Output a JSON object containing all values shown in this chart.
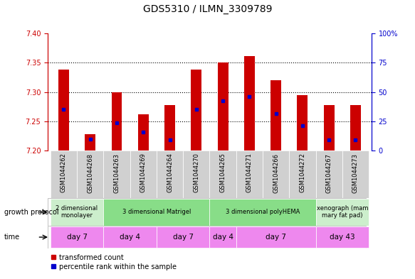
{
  "title": "GDS5310 / ILMN_3309789",
  "samples": [
    "GSM1044262",
    "GSM1044268",
    "GSM1044263",
    "GSM1044269",
    "GSM1044264",
    "GSM1044270",
    "GSM1044265",
    "GSM1044271",
    "GSM1044266",
    "GSM1044272",
    "GSM1044267",
    "GSM1044273"
  ],
  "bar_bottom": 7.2,
  "bar_tops": [
    7.338,
    7.228,
    7.3,
    7.262,
    7.278,
    7.338,
    7.35,
    7.362,
    7.32,
    7.295,
    7.278,
    7.278
  ],
  "blue_dot_y": [
    7.27,
    7.22,
    7.248,
    7.232,
    7.218,
    7.27,
    7.285,
    7.292,
    7.263,
    7.243,
    7.218,
    7.218
  ],
  "ylim_left": [
    7.2,
    7.4
  ],
  "ylim_right": [
    0,
    100
  ],
  "yticks_left": [
    7.2,
    7.25,
    7.3,
    7.35,
    7.4
  ],
  "yticks_right": [
    0,
    25,
    50,
    75,
    100
  ],
  "grid_yticks": [
    7.25,
    7.3,
    7.35
  ],
  "growth_protocol_groups": [
    {
      "label": "2 dimensional\nmonolayer",
      "start": 0,
      "end": 2,
      "color": "#cceecc"
    },
    {
      "label": "3 dimensional Matrigel",
      "start": 2,
      "end": 6,
      "color": "#88dd88"
    },
    {
      "label": "3 dimensional polyHEMA",
      "start": 6,
      "end": 10,
      "color": "#88dd88"
    },
    {
      "label": "xenograph (mam\nmary fat pad)",
      "start": 10,
      "end": 12,
      "color": "#cceecc"
    }
  ],
  "time_groups": [
    {
      "label": "day 7",
      "start": 0,
      "end": 2,
      "color": "#ee88ee"
    },
    {
      "label": "day 4",
      "start": 2,
      "end": 4,
      "color": "#ee88ee"
    },
    {
      "label": "day 7",
      "start": 4,
      "end": 6,
      "color": "#ee88ee"
    },
    {
      "label": "day 4",
      "start": 6,
      "end": 7,
      "color": "#ee88ee"
    },
    {
      "label": "day 7",
      "start": 7,
      "end": 10,
      "color": "#ee88ee"
    },
    {
      "label": "day 43",
      "start": 10,
      "end": 12,
      "color": "#ee88ee"
    }
  ],
  "bar_color": "#cc0000",
  "dot_color": "#0000cc",
  "bar_width": 0.4,
  "tick_color_left": "#cc0000",
  "tick_color_right": "#0000cc",
  "label_fontsize": 7,
  "tick_fontsize": 7,
  "bar_label_fontsize": 6,
  "title_fontsize": 10,
  "row_label_growth": "growth protocol",
  "row_label_time": "time",
  "legend_label_1": "transformed count",
  "legend_label_2": "percentile rank within the sample"
}
